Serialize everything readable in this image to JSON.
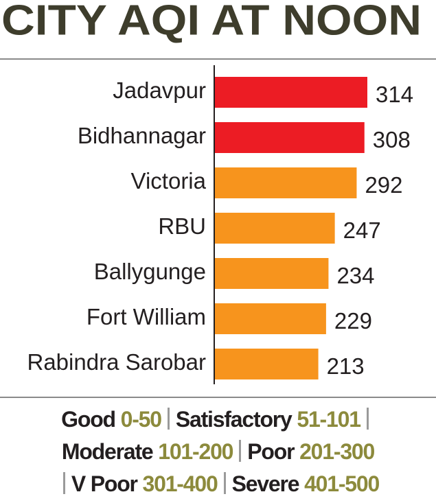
{
  "chart_data": {
    "type": "bar",
    "orientation": "horizontal",
    "title": "CITY AQI AT NOON",
    "categories": [
      "Jadavpur",
      "Bidhannagar",
      "Victoria",
      "RBU",
      "Ballygunge",
      "Fort William",
      "Rabindra Sarobar"
    ],
    "values": [
      314,
      308,
      292,
      247,
      234,
      229,
      213
    ],
    "colors": [
      "#ec1c24",
      "#ec1c24",
      "#f7941d",
      "#f7941d",
      "#f7941d",
      "#f7941d",
      "#f7941d"
    ]
  },
  "legend": {
    "lines": [
      [
        {
          "name": "Good",
          "range": "0-50"
        },
        {
          "name": "Satisfactory",
          "range": "51-101"
        }
      ],
      [
        {
          "name": "Moderate",
          "range": "101-200"
        },
        {
          "name": "Poor",
          "range": "201-300"
        }
      ],
      [
        {
          "name": "V Poor",
          "range": "301-400"
        },
        {
          "name": "Severe",
          "range": "401-500"
        }
      ]
    ]
  }
}
